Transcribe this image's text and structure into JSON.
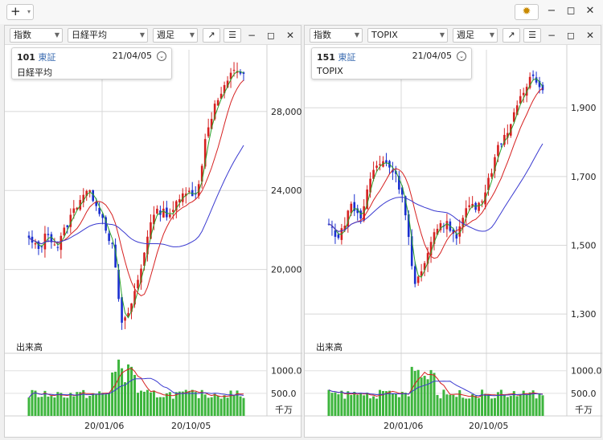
{
  "app": {
    "add_label": "+"
  },
  "colors": {
    "up": "#d62020",
    "down": "#1a2fd0",
    "ma_short": "#2aa02a",
    "ma_mid": "#d62020",
    "ma_long": "#3a3ad0",
    "volume": "#3db53d"
  },
  "panels": [
    {
      "category": "指数",
      "symbol_select": "日経平均",
      "period": "週足",
      "info": {
        "code": "101",
        "exchange": "東証",
        "date": "21/04/05",
        "name": "日経平均"
      },
      "y_ticks": [
        "28,000",
        "24,000",
        "20,000"
      ],
      "volume_label": "出来高",
      "volume_ticks": [
        "1000.0",
        "500.0"
      ],
      "volume_unit": "千万",
      "x_ticks": [
        "20/01/06",
        "20/10/05"
      ]
    },
    {
      "category": "指数",
      "symbol_select": "TOPIX",
      "period": "週足",
      "info": {
        "code": "151",
        "exchange": "東証",
        "date": "21/04/05",
        "name": "TOPIX"
      },
      "y_ticks": [
        "1,900",
        "1,700",
        "1,500",
        "1,300"
      ],
      "volume_label": "出来高",
      "volume_ticks": [
        "1000.0",
        "500.0"
      ],
      "volume_unit": "千万",
      "x_ticks": [
        "20/01/06",
        "20/10/05"
      ]
    }
  ],
  "chart_data": [
    {
      "type": "candlestick",
      "title": "日経平均",
      "y_range": [
        16000,
        30800
      ],
      "y_ticks": [
        28000,
        24000,
        20000
      ],
      "x_ticks": [
        "20/01/06",
        "20/10/05"
      ],
      "close_path": [
        21500,
        21000,
        21900,
        21100,
        22200,
        23200,
        24000,
        23600,
        22500,
        21000,
        17000,
        18300,
        20000,
        22500,
        23000,
        22800,
        23400,
        24200,
        23600,
        27000,
        28400,
        29200,
        30200,
        29900
      ],
      "volume_range": [
        0,
        1350
      ],
      "volume_ticks": [
        1000,
        500
      ]
    },
    {
      "type": "candlestick",
      "title": "TOPIX",
      "y_range": [
        1200,
        2050
      ],
      "y_ticks": [
        1900,
        1700,
        1500,
        1300
      ],
      "x_ticks": [
        "20/01/06",
        "20/10/05"
      ],
      "close_path": [
        1560,
        1520,
        1620,
        1580,
        1710,
        1750,
        1720,
        1640,
        1380,
        1440,
        1560,
        1560,
        1530,
        1620,
        1610,
        1700,
        1800,
        1850,
        1930,
        2000,
        1960
      ],
      "volume_range": [
        0,
        1350
      ],
      "volume_ticks": [
        1000,
        500
      ]
    }
  ]
}
